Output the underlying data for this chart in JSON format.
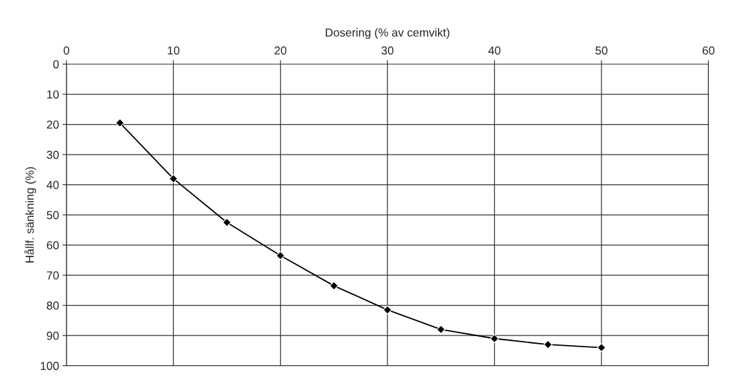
{
  "chart_data": {
    "type": "line",
    "xlabel": "Dosering (% av cemvikt)",
    "ylabel": "Hållf. sänkning (%)",
    "x": [
      5,
      10,
      15,
      20,
      25,
      30,
      35,
      40,
      45,
      50
    ],
    "series": [
      {
        "color": "#000000",
        "values": [
          19.5,
          38,
          52.5,
          63.5,
          73.5,
          81.5,
          88,
          91,
          93,
          94
        ]
      }
    ],
    "xlim": [
      0,
      60
    ],
    "xticks": [
      0,
      10,
      20,
      30,
      40,
      50,
      60
    ],
    "ylim": [
      100,
      0
    ],
    "yticks": [
      0,
      10,
      20,
      30,
      40,
      50,
      60,
      70,
      80,
      90,
      100
    ],
    "grid": true,
    "marker": "diamond",
    "line_style": "solid"
  }
}
